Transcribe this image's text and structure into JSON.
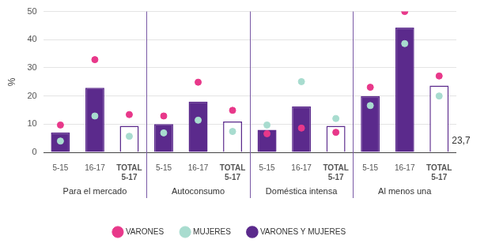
{
  "chart_data": {
    "type": "bar",
    "y_label": "%",
    "categories": [
      "5-15",
      "16-17",
      "TOTAL 5-17",
      "5-15",
      "16-17",
      "TOTAL 5-17",
      "5-15",
      "16-17",
      "TOTAL 5-17",
      "5-15",
      "16-17",
      "TOTAL 5-17"
    ],
    "groups": [
      "Para el mercado",
      "Autoconsumo",
      "Doméstica intensa",
      "Al menos una"
    ],
    "series": [
      {
        "name": "VARONES Y MUJERES",
        "type": "bar",
        "color": "#5b2a8c",
        "colors": [
          "#5b2a8c",
          "#5b2a8c",
          "#ffffff",
          "#5b2a8c",
          "#5b2a8c",
          "#ffffff",
          "#5b2a8c",
          "#5b2a8c",
          "#ffffff",
          "#5b2a8c",
          "#5b2a8c",
          "#ffffff"
        ],
        "values": [
          7,
          22.9,
          9.4,
          10,
          18,
          10.9,
          8,
          16.3,
          9.4,
          20,
          44.3,
          23.7
        ],
        "value_labels": [
          null,
          null,
          null,
          null,
          null,
          null,
          null,
          null,
          null,
          null,
          null,
          "23,7"
        ]
      },
      {
        "name": "VARONES",
        "type": "scatter",
        "marker": "circle",
        "color": "#e8388a",
        "values": [
          9.7,
          32.9,
          13.4,
          12.9,
          24.9,
          14.9,
          6.6,
          8.6,
          7.1,
          23.1,
          50,
          27.1
        ]
      },
      {
        "name": "MUJERES",
        "type": "scatter",
        "marker": "circle",
        "color": "#a8dccf",
        "values": [
          4,
          12.9,
          5.7,
          6.9,
          11.4,
          7.4,
          9.7,
          25.1,
          12,
          16.6,
          38.6,
          20
        ]
      }
    ],
    "ylim": [
      0,
      50
    ],
    "yticks": [
      0,
      10,
      20,
      30,
      40,
      50
    ],
    "grid": true,
    "legend": "bottom"
  }
}
